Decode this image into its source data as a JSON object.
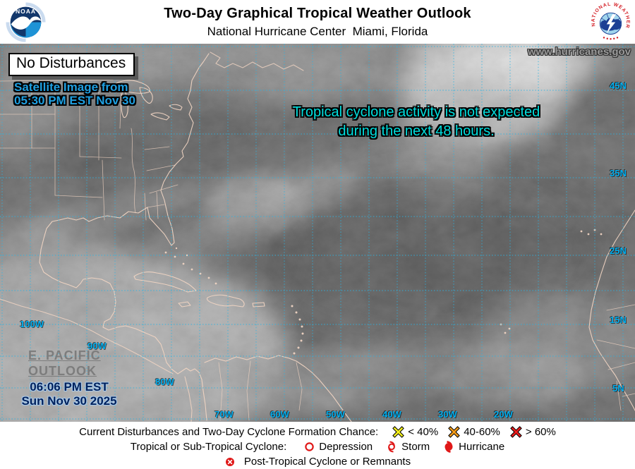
{
  "header": {
    "title": "Two-Day Graphical Tropical Weather Outlook",
    "subtitle": "National Hurricane Center  Miami, Florida",
    "noaa_text": "NOAA",
    "nws_text": "NATIONAL WEATHER SERVICE"
  },
  "map": {
    "status": "No Disturbances",
    "satellite_caption": {
      "line1": "Satellite Image from",
      "line2": "05:30 PM EST Nov 30"
    },
    "website": "www.hurricanes.gov",
    "message": {
      "line1": "Tropical cyclone activity is not expected",
      "line2": "during the next 48 hours."
    },
    "epac_link": {
      "line1": "E. PACIFIC",
      "line2": "OUTLOOK"
    },
    "issued": {
      "time": "06:06 PM EST",
      "date": "Sun Nov 30 2025"
    },
    "lat_labels": [
      "45N",
      "35N",
      "25N",
      "15N",
      "5N"
    ],
    "lon_labels": [
      "70W",
      "60W",
      "50W",
      "40W",
      "30W",
      "20W"
    ],
    "epac_lon_labels": [
      "100W",
      "90W",
      "80W"
    ]
  },
  "legend": {
    "formation": {
      "label": "Current Disturbances and Two-Day Cyclone Formation Chance:",
      "items": [
        {
          "label": "< 40%",
          "color": "#f2ee1d"
        },
        {
          "label": "40-60%",
          "color": "#f29a18"
        },
        {
          "label": "> 60%",
          "color": "#e81c1c"
        }
      ]
    },
    "cyclone": {
      "label": "Tropical or Sub-Tropical Cyclone:",
      "items": [
        {
          "label": "Depression"
        },
        {
          "label": "Storm"
        },
        {
          "label": "Hurricane"
        }
      ]
    },
    "post": {
      "label": "Post-Tropical Cyclone or Remnants"
    }
  },
  "colors": {
    "grid": "#2ab4e4",
    "coastline": "#f0d4c2",
    "label_cyan": "#00aeef",
    "message_cyan": "#00dede",
    "caption_blue": "#1f9fe0",
    "issued_navy": "#00215c",
    "symbol_red": "#e01818"
  }
}
